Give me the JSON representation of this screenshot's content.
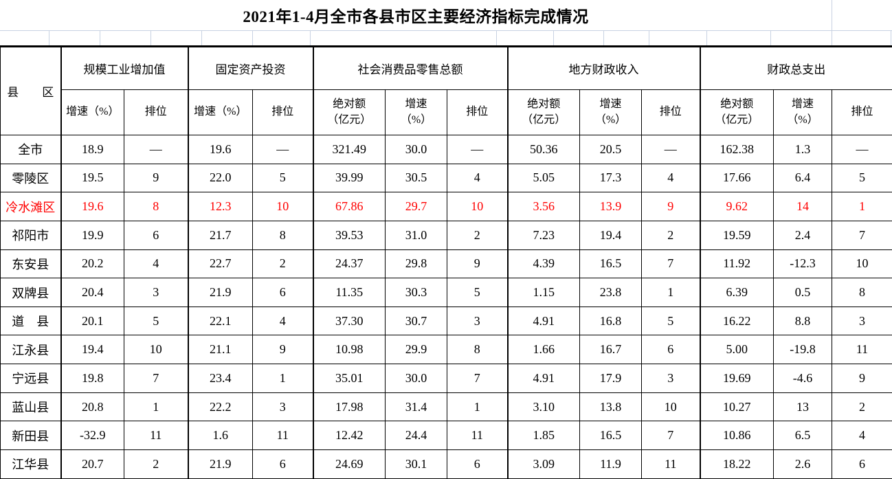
{
  "title": "2021年1-4月全市各县市区主要经济指标完成情况",
  "colors": {
    "text": "#000000",
    "highlight": "#ff0000",
    "border": "#000000",
    "gridline": "#c8d2e2"
  },
  "table": {
    "corner_header": "县　　区",
    "groups": [
      {
        "label": "规模工业增加值",
        "columns": [
          "增速（%）",
          "排位"
        ]
      },
      {
        "label": "固定资产投资",
        "columns": [
          "增速（%）",
          "排位"
        ]
      },
      {
        "label": "社会消费品零售总额",
        "columns": [
          "绝对额\n（亿元）",
          "增速\n（%）",
          "排位"
        ]
      },
      {
        "label": "地方财政收入",
        "columns": [
          "绝对额\n（亿元）",
          "增速\n（%）",
          "排位"
        ]
      },
      {
        "label": "财政总支出",
        "columns": [
          "绝对额\n（亿元）",
          "增速\n（%）",
          "排位"
        ]
      }
    ],
    "rows": [
      {
        "name": "全市",
        "highlight": false,
        "values": [
          "18.9",
          "—",
          "19.6",
          "—",
          "321.49",
          "30.0",
          "—",
          "50.36",
          "20.5",
          "—",
          "162.38",
          "1.3",
          "—"
        ]
      },
      {
        "name": "零陵区",
        "highlight": false,
        "values": [
          "19.5",
          "9",
          "22.0",
          "5",
          "39.99",
          "30.5",
          "4",
          "5.05",
          "17.3",
          "4",
          "17.66",
          "6.4",
          "5"
        ]
      },
      {
        "name": "冷水滩区",
        "highlight": true,
        "values": [
          "19.6",
          "8",
          "12.3",
          "10",
          "67.86",
          "29.7",
          "10",
          "3.56",
          "13.9",
          "9",
          "9.62",
          "14",
          "1"
        ]
      },
      {
        "name": "祁阳市",
        "highlight": false,
        "values": [
          "19.9",
          "6",
          "21.7",
          "8",
          "39.53",
          "31.0",
          "2",
          "7.23",
          "19.4",
          "2",
          "19.59",
          "2.4",
          "7"
        ]
      },
      {
        "name": "东安县",
        "highlight": false,
        "values": [
          "20.2",
          "4",
          "22.7",
          "2",
          "24.37",
          "29.8",
          "9",
          "4.39",
          "16.5",
          "7",
          "11.92",
          "-12.3",
          "10"
        ]
      },
      {
        "name": "双牌县",
        "highlight": false,
        "values": [
          "20.4",
          "3",
          "21.9",
          "6",
          "11.35",
          "30.3",
          "5",
          "1.15",
          "23.8",
          "1",
          "6.39",
          "0.5",
          "8"
        ]
      },
      {
        "name": "道　县",
        "highlight": false,
        "values": [
          "20.1",
          "5",
          "22.1",
          "4",
          "37.30",
          "30.7",
          "3",
          "4.91",
          "16.8",
          "5",
          "16.22",
          "8.8",
          "3"
        ]
      },
      {
        "name": "江永县",
        "highlight": false,
        "values": [
          "19.4",
          "10",
          "21.1",
          "9",
          "10.98",
          "29.9",
          "8",
          "1.66",
          "16.7",
          "6",
          "5.00",
          "-19.8",
          "11"
        ]
      },
      {
        "name": "宁远县",
        "highlight": false,
        "values": [
          "19.8",
          "7",
          "23.4",
          "1",
          "35.01",
          "30.0",
          "7",
          "4.91",
          "17.9",
          "3",
          "19.69",
          "-4.6",
          "9"
        ]
      },
      {
        "name": "蓝山县",
        "highlight": false,
        "values": [
          "20.8",
          "1",
          "22.2",
          "3",
          "17.98",
          "31.4",
          "1",
          "3.10",
          "13.8",
          "10",
          "10.27",
          "13",
          "2"
        ]
      },
      {
        "name": "新田县",
        "highlight": false,
        "values": [
          "-32.9",
          "11",
          "1.6",
          "11",
          "12.42",
          "24.4",
          "11",
          "1.85",
          "16.5",
          "7",
          "10.86",
          "6.5",
          "4"
        ]
      },
      {
        "name": "江华县",
        "highlight": false,
        "values": [
          "20.7",
          "2",
          "21.9",
          "6",
          "24.69",
          "30.1",
          "6",
          "3.09",
          "11.9",
          "11",
          "18.22",
          "2.6",
          "6"
        ]
      }
    ]
  }
}
